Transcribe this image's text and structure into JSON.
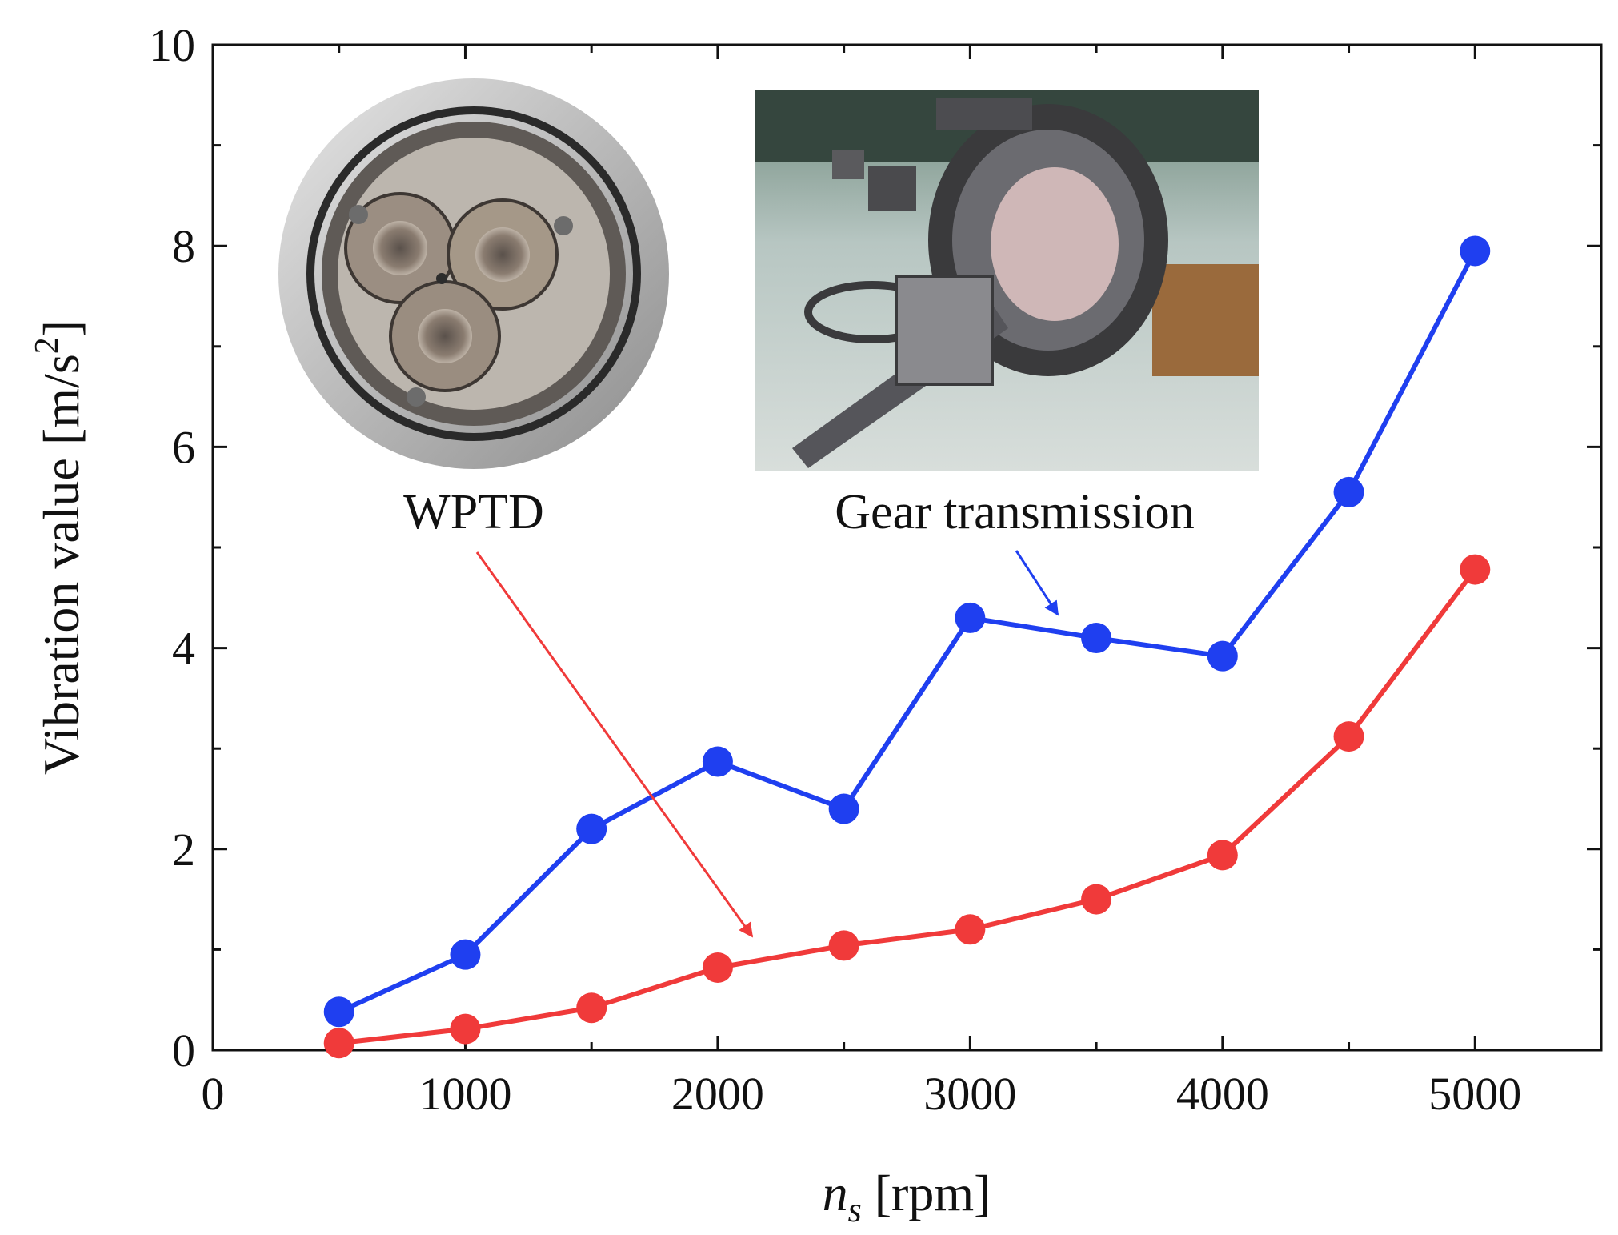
{
  "chart_data": {
    "type": "line",
    "title": "",
    "xlabel_var": "n",
    "xlabel_sub": "s",
    "xlabel_unit": " [rpm]",
    "ylabel": "Vibration value [m/s",
    "ylabel_sup": "2",
    "ylabel_end": "]",
    "xlim": [
      0,
      5500
    ],
    "ylim": [
      0,
      10
    ],
    "xticks": [
      0,
      1000,
      2000,
      3000,
      4000,
      5000
    ],
    "yticks": [
      0,
      2,
      4,
      6,
      8,
      10
    ],
    "grid": false,
    "x": [
      500,
      1000,
      1500,
      2000,
      2500,
      3000,
      3500,
      4000,
      4500,
      5000
    ],
    "series": [
      {
        "name": "Gear transmission",
        "color": "#1f3ff0",
        "values": [
          0.38,
          0.95,
          2.2,
          2.87,
          2.4,
          4.3,
          4.1,
          3.92,
          5.55,
          7.95
        ]
      },
      {
        "name": "WPTD",
        "color": "#f03a3a",
        "values": [
          0.07,
          0.21,
          0.42,
          0.82,
          1.04,
          1.2,
          1.5,
          1.94,
          3.12,
          4.78
        ]
      }
    ],
    "annotations": {
      "wptd_label": "WPTD",
      "gear_label": "Gear transmission"
    },
    "insets": [
      "wptd-photo",
      "gear-transmission-photo"
    ]
  }
}
